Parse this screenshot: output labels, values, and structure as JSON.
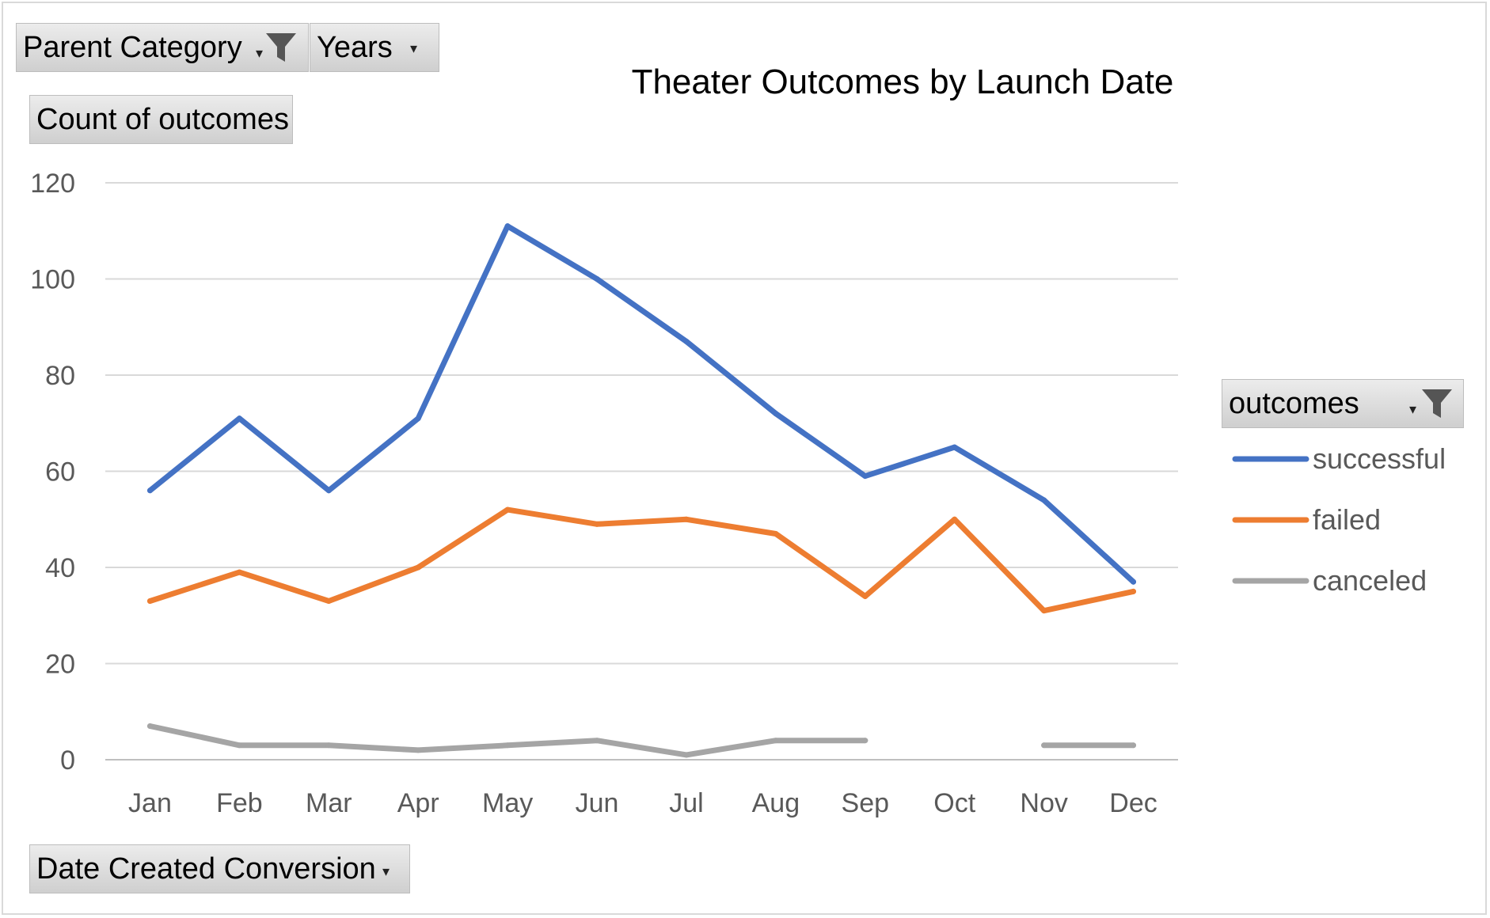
{
  "pivot_fields": {
    "parent_category": "Parent Category",
    "years": "Years",
    "values_field": "Count of outcomes",
    "axis_field": "Date Created Conversion",
    "legend_field": "outcomes"
  },
  "icons": {
    "filter": "filter-funnel-icon",
    "dropdown": "dropdown-arrow-icon"
  },
  "chart_data": {
    "type": "line",
    "title": "Theater Outcomes by Launch Date",
    "categories": [
      "Jan",
      "Feb",
      "Mar",
      "Apr",
      "May",
      "Jun",
      "Jul",
      "Aug",
      "Sep",
      "Oct",
      "Nov",
      "Dec"
    ],
    "ylim": [
      0,
      120
    ],
    "yticks": [
      "0",
      "20",
      "40",
      "60",
      "80",
      "100",
      "120"
    ],
    "grid": true,
    "legend_position": "right",
    "series": [
      {
        "name": "successful",
        "color": "#4472C4",
        "values": [
          56,
          71,
          56,
          71,
          111,
          100,
          87,
          72,
          59,
          65,
          54,
          37
        ]
      },
      {
        "name": "failed",
        "color": "#ED7D31",
        "values": [
          33,
          39,
          33,
          40,
          52,
          49,
          50,
          47,
          34,
          50,
          31,
          35
        ]
      },
      {
        "name": "canceled",
        "color": "#A5A5A5",
        "values": [
          7,
          3,
          3,
          2,
          3,
          4,
          1,
          4,
          4,
          null,
          3,
          3
        ]
      }
    ]
  }
}
